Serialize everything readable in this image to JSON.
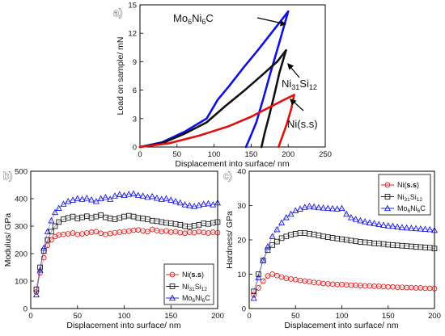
{
  "panels": {
    "a": {
      "letter": "a)"
    },
    "b": {
      "letter": "b)"
    },
    "c": {
      "letter": "c)"
    }
  },
  "chart_data": [
    {
      "type": "line",
      "xlabel": "Displacement into surface/ nm",
      "ylabel": "Load on sample/ mN",
      "xlim": [
        0,
        250
      ],
      "ylim": [
        0,
        15
      ],
      "xticks": [
        0,
        50,
        100,
        150,
        200,
        250
      ],
      "yticks": [
        0,
        3,
        6,
        9,
        12,
        15
      ],
      "grid": false,
      "legend": "none (curves labelled by annotations with arrows)",
      "series": [
        {
          "name": "Mo6Ni6C",
          "color": "#1010e0",
          "loading": [
            [
              0,
              0
            ],
            [
              30,
              0.5
            ],
            [
              60,
              1.6
            ],
            [
              90,
              3.0
            ],
            [
              105,
              5.0
            ],
            [
              120,
              6.4
            ],
            [
              140,
              8.4
            ],
            [
              160,
              10.3
            ],
            [
              180,
              12.3
            ],
            [
              200,
              14.3
            ]
          ],
          "unloading": [
            [
              200,
              14.3
            ],
            [
              188,
              11.0
            ],
            [
              176,
              7.8
            ],
            [
              166,
              5.0
            ],
            [
              157,
              2.6
            ],
            [
              148,
              0.9
            ],
            [
              143,
              0
            ]
          ]
        },
        {
          "name": "Ni31Si12",
          "color": "#111111",
          "loading": [
            [
              0,
              0
            ],
            [
              30,
              0.4
            ],
            [
              60,
              1.4
            ],
            [
              90,
              2.6
            ],
            [
              115,
              4.3
            ],
            [
              140,
              5.9
            ],
            [
              165,
              7.6
            ],
            [
              185,
              9.0
            ],
            [
              197,
              10.2
            ]
          ],
          "unloading": [
            [
              197,
              10.2
            ],
            [
              188,
              7.8
            ],
            [
              181,
              5.4
            ],
            [
              174,
              3.2
            ],
            [
              168,
              1.4
            ],
            [
              164,
              0
            ]
          ]
        },
        {
          "name": "Ni(s.s)",
          "color": "#e01010",
          "loading": [
            [
              0,
              0
            ],
            [
              40,
              0.4
            ],
            [
              80,
              1.2
            ],
            [
              120,
              2.2
            ],
            [
              150,
              3.2
            ],
            [
              175,
              4.2
            ],
            [
              195,
              5.0
            ],
            [
              208,
              5.5
            ]
          ],
          "unloading": [
            [
              208,
              5.5
            ],
            [
              204,
              4.0
            ],
            [
              198,
              2.4
            ],
            [
              192,
              1.1
            ],
            [
              187,
              0
            ]
          ]
        }
      ],
      "annotations": [
        "Mo6Ni6C",
        "Ni31Si12",
        "Ni(s.s)"
      ]
    },
    {
      "type": "scatter",
      "xlabel": "Displacement into surface/ nm",
      "ylabel": "Modulus/ GPa",
      "xlim": [
        0,
        200
      ],
      "ylim": [
        0,
        500
      ],
      "xticks": [
        0,
        50,
        100,
        150,
        200
      ],
      "yticks": [
        0,
        100,
        200,
        300,
        400,
        500
      ],
      "grid": false,
      "legend": "bottom-right",
      "series": [
        {
          "name": "Ni(s.s)",
          "marker": "circle",
          "color": "#e01010",
          "x": [
            6,
            10,
            14,
            18,
            22,
            26,
            30,
            35,
            40,
            45,
            50,
            55,
            60,
            65,
            70,
            75,
            80,
            85,
            90,
            95,
            100,
            105,
            110,
            115,
            120,
            125,
            130,
            135,
            140,
            145,
            150,
            155,
            160,
            165,
            170,
            175,
            180,
            185,
            190,
            195,
            200
          ],
          "y": [
            60,
            130,
            185,
            230,
            250,
            262,
            268,
            270,
            272,
            275,
            270,
            272,
            275,
            278,
            280,
            274,
            270,
            273,
            276,
            278,
            280,
            282,
            285,
            286,
            283,
            280,
            288,
            284,
            280,
            283,
            278,
            280,
            276,
            274,
            278,
            276,
            280,
            277,
            275,
            278,
            276
          ]
        },
        {
          "name": "Ni31Si12",
          "marker": "square",
          "color": "#111111",
          "x": [
            6,
            10,
            14,
            18,
            22,
            26,
            30,
            35,
            40,
            45,
            50,
            55,
            60,
            65,
            70,
            75,
            80,
            85,
            90,
            95,
            100,
            105,
            110,
            115,
            120,
            125,
            130,
            135,
            140,
            145,
            150,
            155,
            160,
            165,
            170,
            175,
            180,
            185,
            190,
            195,
            200
          ],
          "y": [
            70,
            150,
            210,
            250,
            280,
            300,
            315,
            325,
            330,
            335,
            328,
            332,
            336,
            330,
            335,
            340,
            332,
            328,
            325,
            330,
            335,
            338,
            335,
            330,
            328,
            325,
            320,
            318,
            315,
            312,
            310,
            308,
            305,
            300,
            298,
            302,
            305,
            310,
            308,
            312,
            315
          ]
        },
        {
          "name": "Mo6Ni6C",
          "marker": "triangle",
          "color": "#1010e0",
          "x": [
            6,
            10,
            14,
            18,
            22,
            26,
            30,
            35,
            40,
            45,
            50,
            55,
            60,
            65,
            70,
            75,
            80,
            85,
            90,
            95,
            100,
            105,
            110,
            115,
            120,
            125,
            130,
            135,
            140,
            145,
            150,
            155,
            160,
            165,
            170,
            175,
            180,
            185,
            190,
            195,
            200
          ],
          "y": [
            50,
            140,
            220,
            280,
            320,
            350,
            365,
            380,
            390,
            395,
            400,
            398,
            402,
            396,
            390,
            400,
            405,
            398,
            410,
            415,
            412,
            416,
            418,
            412,
            410,
            405,
            408,
            402,
            398,
            400,
            395,
            390,
            385,
            378,
            375,
            372,
            376,
            380,
            382,
            378,
            385
          ]
        }
      ]
    },
    {
      "type": "scatter",
      "xlabel": "Displacement into surface/ nm",
      "ylabel": "Hardness/ GPa",
      "xlim": [
        0,
        200
      ],
      "ylim": [
        0,
        40
      ],
      "xticks": [
        0,
        50,
        100,
        150,
        200
      ],
      "yticks": [
        0,
        10,
        20,
        30,
        40
      ],
      "grid": false,
      "legend": "top-right",
      "series": [
        {
          "name": "Ni(s.s)",
          "marker": "circle",
          "color": "#e01010",
          "x": [
            5,
            10,
            15,
            20,
            25,
            30,
            35,
            40,
            45,
            50,
            55,
            60,
            65,
            70,
            75,
            80,
            85,
            90,
            95,
            100,
            105,
            110,
            115,
            120,
            125,
            130,
            135,
            140,
            145,
            150,
            155,
            160,
            165,
            170,
            175,
            180,
            185,
            190,
            195,
            200
          ],
          "y": [
            4,
            6,
            8,
            9.5,
            10,
            9.6,
            9.2,
            8.8,
            8.6,
            8.4,
            8.2,
            8.0,
            7.8,
            7.6,
            7.5,
            7.3,
            7.2,
            7.1,
            7.0,
            7.0,
            6.9,
            6.8,
            6.8,
            6.7,
            6.6,
            6.6,
            6.5,
            6.5,
            6.4,
            6.3,
            6.3,
            6.2,
            6.2,
            6.1,
            6.1,
            6.0,
            6.0,
            5.9,
            5.9,
            5.8
          ]
        },
        {
          "name": "Ni31Si12",
          "marker": "square",
          "color": "#111111",
          "x": [
            5,
            10,
            15,
            20,
            25,
            30,
            35,
            40,
            45,
            50,
            55,
            60,
            65,
            70,
            75,
            80,
            85,
            90,
            95,
            100,
            105,
            110,
            115,
            120,
            125,
            130,
            135,
            140,
            145,
            150,
            155,
            160,
            165,
            170,
            175,
            180,
            185,
            190,
            195,
            200
          ],
          "y": [
            5,
            10,
            14,
            17,
            18.5,
            19.5,
            20.5,
            21,
            21.5,
            21.8,
            22,
            22,
            21.8,
            21.6,
            21.3,
            21,
            20.8,
            20.6,
            20.4,
            20.2,
            20,
            19.8,
            19.6,
            19.4,
            19.3,
            19.2,
            19,
            18.9,
            18.8,
            18.6,
            18.5,
            18.4,
            18.3,
            18.2,
            18.1,
            18,
            17.9,
            17.8,
            17.7,
            17.5
          ]
        },
        {
          "name": "Mo6Ni6C",
          "marker": "triangle",
          "color": "#1010e0",
          "x": [
            5,
            10,
            15,
            20,
            25,
            30,
            35,
            40,
            45,
            50,
            55,
            60,
            65,
            70,
            75,
            80,
            85,
            90,
            95,
            100,
            105,
            110,
            115,
            120,
            125,
            130,
            135,
            140,
            145,
            150,
            155,
            160,
            165,
            170,
            175,
            180,
            185,
            190,
            195,
            200
          ],
          "y": [
            3,
            9,
            14,
            18,
            21,
            23,
            25,
            26.5,
            27.5,
            28.5,
            29,
            29.5,
            29.8,
            29.6,
            29.4,
            29.3,
            29.2,
            29.1,
            29.0,
            29.2,
            27.5,
            26.5,
            26,
            25.6,
            25.3,
            25,
            24.8,
            24.5,
            24.3,
            24.1,
            24,
            23.8,
            23.6,
            23.5,
            23.4,
            23.3,
            23.2,
            23.1,
            23.0,
            22.8
          ]
        }
      ]
    }
  ]
}
